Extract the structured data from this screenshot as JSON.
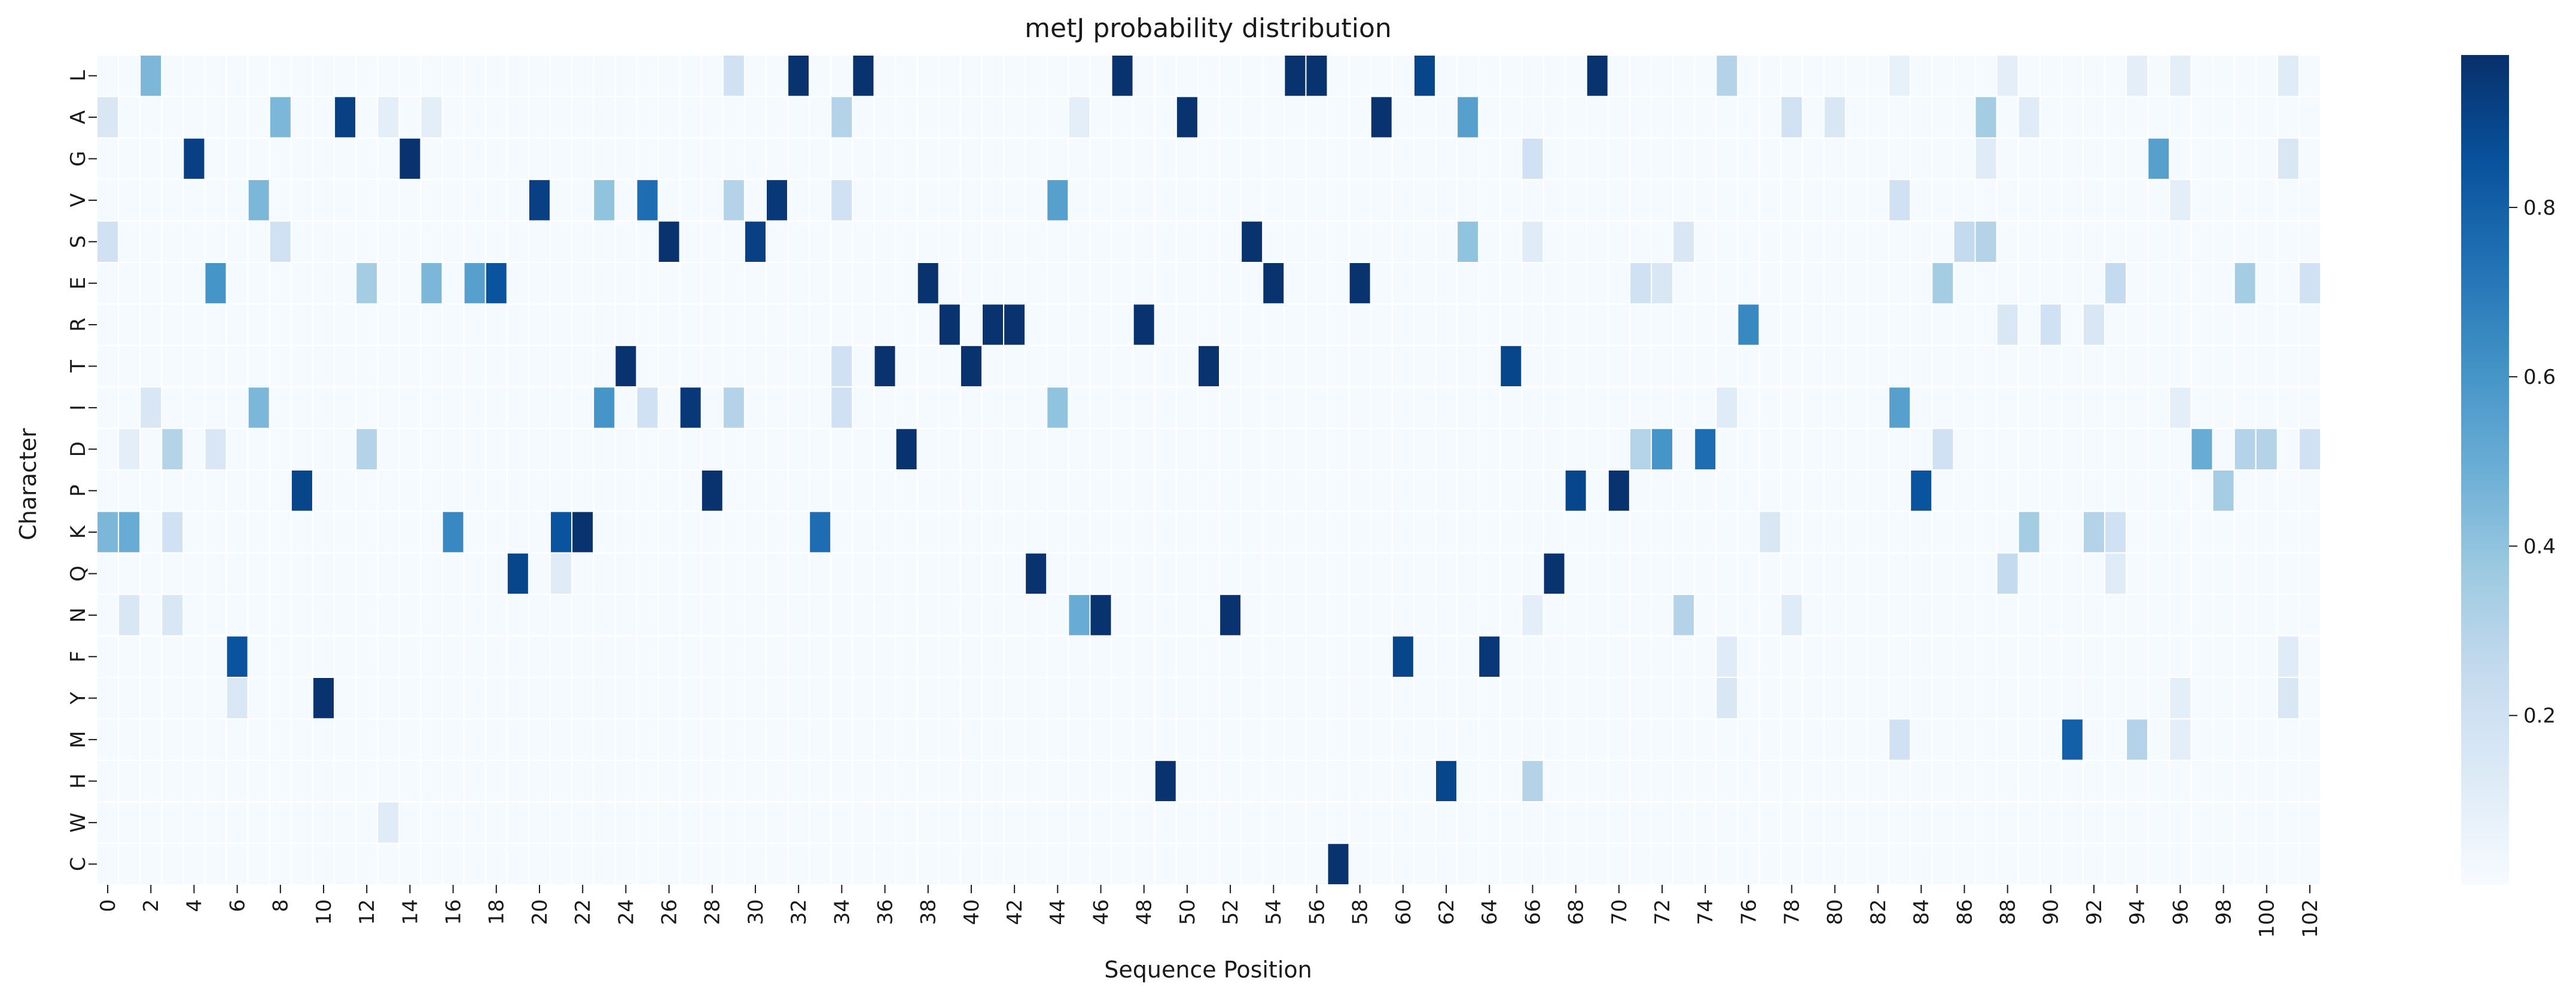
{
  "chart_data": {
    "type": "heatmap",
    "title": "metJ probability distribution",
    "xlabel": "Sequence Position",
    "ylabel": "Character",
    "rows": [
      "L",
      "A",
      "G",
      "V",
      "S",
      "E",
      "R",
      "T",
      "I",
      "D",
      "P",
      "K",
      "Q",
      "N",
      "F",
      "Y",
      "M",
      "H",
      "W",
      "C"
    ],
    "positions": [
      0,
      1,
      2,
      3,
      4,
      5,
      6,
      7,
      8,
      9,
      10,
      11,
      12,
      13,
      14,
      15,
      16,
      17,
      18,
      19,
      20,
      21,
      22,
      23,
      24,
      25,
      26,
      27,
      28,
      29,
      30,
      31,
      32,
      33,
      34,
      35,
      36,
      37,
      38,
      39,
      40,
      41,
      42,
      43,
      44,
      45,
      46,
      47,
      48,
      49,
      50,
      51,
      52,
      53,
      54,
      55,
      56,
      57,
      58,
      59,
      60,
      61,
      62,
      63,
      64,
      65,
      66,
      67,
      68,
      69,
      70,
      71,
      72,
      73,
      74,
      75,
      76,
      77,
      78,
      79,
      80,
      81,
      82,
      83,
      84,
      85,
      86,
      87,
      88,
      89,
      90,
      91,
      92,
      93,
      94,
      95,
      96,
      97,
      98,
      99,
      100,
      101,
      102
    ],
    "x_tick_labels": [
      "0",
      "2",
      "4",
      "6",
      "8",
      "10",
      "12",
      "14",
      "16",
      "18",
      "20",
      "22",
      "24",
      "26",
      "28",
      "30",
      "32",
      "34",
      "36",
      "38",
      "40",
      "42",
      "44",
      "46",
      "48",
      "50",
      "52",
      "54",
      "56",
      "58",
      "60",
      "62",
      "64",
      "66",
      "68",
      "70",
      "72",
      "74",
      "76",
      "78",
      "80",
      "82",
      "84",
      "86",
      "88",
      "90",
      "92",
      "94",
      "96",
      "98",
      "100",
      "102"
    ],
    "colorbar": {
      "vmin": 0,
      "vmax": 0.98,
      "ticks": [
        0.2,
        0.4,
        0.6,
        0.8
      ],
      "tick_labels": [
        "0.2",
        "0.4",
        "0.6",
        "0.8"
      ],
      "colormap": "Blues"
    },
    "background_value": 0.01,
    "grid": false,
    "legend": "colorbar-right",
    "cells": [
      {
        "row": "L",
        "pos": 2,
        "value": 0.45
      },
      {
        "row": "L",
        "pos": 29,
        "value": 0.2
      },
      {
        "row": "L",
        "pos": 32,
        "value": 0.97
      },
      {
        "row": "L",
        "pos": 35,
        "value": 0.97
      },
      {
        "row": "L",
        "pos": 47,
        "value": 0.97
      },
      {
        "row": "L",
        "pos": 55,
        "value": 0.97
      },
      {
        "row": "L",
        "pos": 56,
        "value": 0.97
      },
      {
        "row": "L",
        "pos": 61,
        "value": 0.9
      },
      {
        "row": "L",
        "pos": 69,
        "value": 0.97
      },
      {
        "row": "L",
        "pos": 75,
        "value": 0.3
      },
      {
        "row": "L",
        "pos": 83,
        "value": 0.08
      },
      {
        "row": "L",
        "pos": 88,
        "value": 0.1
      },
      {
        "row": "L",
        "pos": 94,
        "value": 0.1
      },
      {
        "row": "L",
        "pos": 96,
        "value": 0.1
      },
      {
        "row": "L",
        "pos": 101,
        "value": 0.12
      },
      {
        "row": "A",
        "pos": 0,
        "value": 0.15
      },
      {
        "row": "A",
        "pos": 8,
        "value": 0.45
      },
      {
        "row": "A",
        "pos": 11,
        "value": 0.92
      },
      {
        "row": "A",
        "pos": 13,
        "value": 0.1
      },
      {
        "row": "A",
        "pos": 15,
        "value": 0.1
      },
      {
        "row": "A",
        "pos": 34,
        "value": 0.3
      },
      {
        "row": "A",
        "pos": 45,
        "value": 0.1
      },
      {
        "row": "A",
        "pos": 50,
        "value": 0.97
      },
      {
        "row": "A",
        "pos": 59,
        "value": 0.97
      },
      {
        "row": "A",
        "pos": 63,
        "value": 0.55
      },
      {
        "row": "A",
        "pos": 78,
        "value": 0.2
      },
      {
        "row": "A",
        "pos": 80,
        "value": 0.15
      },
      {
        "row": "A",
        "pos": 87,
        "value": 0.35
      },
      {
        "row": "A",
        "pos": 89,
        "value": 0.12
      },
      {
        "row": "G",
        "pos": 4,
        "value": 0.92
      },
      {
        "row": "G",
        "pos": 14,
        "value": 0.97
      },
      {
        "row": "G",
        "pos": 66,
        "value": 0.2
      },
      {
        "row": "G",
        "pos": 87,
        "value": 0.12
      },
      {
        "row": "G",
        "pos": 95,
        "value": 0.55
      },
      {
        "row": "G",
        "pos": 101,
        "value": 0.15
      },
      {
        "row": "V",
        "pos": 7,
        "value": 0.45
      },
      {
        "row": "V",
        "pos": 20,
        "value": 0.92
      },
      {
        "row": "V",
        "pos": 23,
        "value": 0.4
      },
      {
        "row": "V",
        "pos": 25,
        "value": 0.75
      },
      {
        "row": "V",
        "pos": 29,
        "value": 0.3
      },
      {
        "row": "V",
        "pos": 31,
        "value": 0.95
      },
      {
        "row": "V",
        "pos": 34,
        "value": 0.2
      },
      {
        "row": "V",
        "pos": 44,
        "value": 0.55
      },
      {
        "row": "V",
        "pos": 83,
        "value": 0.2
      },
      {
        "row": "V",
        "pos": 96,
        "value": 0.1
      },
      {
        "row": "S",
        "pos": 0,
        "value": 0.2
      },
      {
        "row": "S",
        "pos": 8,
        "value": 0.2
      },
      {
        "row": "S",
        "pos": 26,
        "value": 0.97
      },
      {
        "row": "S",
        "pos": 30,
        "value": 0.92
      },
      {
        "row": "S",
        "pos": 53,
        "value": 0.97
      },
      {
        "row": "S",
        "pos": 63,
        "value": 0.4
      },
      {
        "row": "S",
        "pos": 66,
        "value": 0.12
      },
      {
        "row": "S",
        "pos": 73,
        "value": 0.15
      },
      {
        "row": "S",
        "pos": 86,
        "value": 0.25
      },
      {
        "row": "S",
        "pos": 87,
        "value": 0.3
      },
      {
        "row": "E",
        "pos": 5,
        "value": 0.6
      },
      {
        "row": "E",
        "pos": 12,
        "value": 0.35
      },
      {
        "row": "E",
        "pos": 15,
        "value": 0.45
      },
      {
        "row": "E",
        "pos": 17,
        "value": 0.55
      },
      {
        "row": "E",
        "pos": 18,
        "value": 0.85
      },
      {
        "row": "E",
        "pos": 38,
        "value": 0.97
      },
      {
        "row": "E",
        "pos": 54,
        "value": 0.97
      },
      {
        "row": "E",
        "pos": 58,
        "value": 0.97
      },
      {
        "row": "E",
        "pos": 71,
        "value": 0.2
      },
      {
        "row": "E",
        "pos": 72,
        "value": 0.15
      },
      {
        "row": "E",
        "pos": 85,
        "value": 0.35
      },
      {
        "row": "E",
        "pos": 93,
        "value": 0.25
      },
      {
        "row": "E",
        "pos": 99,
        "value": 0.35
      },
      {
        "row": "E",
        "pos": 102,
        "value": 0.2
      },
      {
        "row": "R",
        "pos": 39,
        "value": 0.97
      },
      {
        "row": "R",
        "pos": 41,
        "value": 0.97
      },
      {
        "row": "R",
        "pos": 42,
        "value": 0.97
      },
      {
        "row": "R",
        "pos": 48,
        "value": 0.97
      },
      {
        "row": "R",
        "pos": 76,
        "value": 0.65
      },
      {
        "row": "R",
        "pos": 88,
        "value": 0.15
      },
      {
        "row": "R",
        "pos": 90,
        "value": 0.2
      },
      {
        "row": "R",
        "pos": 92,
        "value": 0.15
      },
      {
        "row": "T",
        "pos": 24,
        "value": 0.97
      },
      {
        "row": "T",
        "pos": 34,
        "value": 0.2
      },
      {
        "row": "T",
        "pos": 36,
        "value": 0.97
      },
      {
        "row": "T",
        "pos": 40,
        "value": 0.97
      },
      {
        "row": "T",
        "pos": 51,
        "value": 0.97
      },
      {
        "row": "T",
        "pos": 65,
        "value": 0.9
      },
      {
        "row": "I",
        "pos": 2,
        "value": 0.15
      },
      {
        "row": "I",
        "pos": 7,
        "value": 0.45
      },
      {
        "row": "I",
        "pos": 23,
        "value": 0.6
      },
      {
        "row": "I",
        "pos": 25,
        "value": 0.2
      },
      {
        "row": "I",
        "pos": 27,
        "value": 0.95
      },
      {
        "row": "I",
        "pos": 29,
        "value": 0.3
      },
      {
        "row": "I",
        "pos": 34,
        "value": 0.2
      },
      {
        "row": "I",
        "pos": 44,
        "value": 0.4
      },
      {
        "row": "I",
        "pos": 75,
        "value": 0.12
      },
      {
        "row": "I",
        "pos": 83,
        "value": 0.55
      },
      {
        "row": "I",
        "pos": 96,
        "value": 0.1
      },
      {
        "row": "D",
        "pos": 1,
        "value": 0.1
      },
      {
        "row": "D",
        "pos": 3,
        "value": 0.3
      },
      {
        "row": "D",
        "pos": 5,
        "value": 0.15
      },
      {
        "row": "D",
        "pos": 12,
        "value": 0.3
      },
      {
        "row": "D",
        "pos": 37,
        "value": 0.97
      },
      {
        "row": "D",
        "pos": 71,
        "value": 0.3
      },
      {
        "row": "D",
        "pos": 72,
        "value": 0.6
      },
      {
        "row": "D",
        "pos": 74,
        "value": 0.75
      },
      {
        "row": "D",
        "pos": 85,
        "value": 0.2
      },
      {
        "row": "D",
        "pos": 97,
        "value": 0.5
      },
      {
        "row": "D",
        "pos": 99,
        "value": 0.3
      },
      {
        "row": "D",
        "pos": 100,
        "value": 0.3
      },
      {
        "row": "D",
        "pos": 102,
        "value": 0.2
      },
      {
        "row": "P",
        "pos": 9,
        "value": 0.9
      },
      {
        "row": "P",
        "pos": 28,
        "value": 0.97
      },
      {
        "row": "P",
        "pos": 68,
        "value": 0.9
      },
      {
        "row": "P",
        "pos": 70,
        "value": 0.97
      },
      {
        "row": "P",
        "pos": 84,
        "value": 0.85
      },
      {
        "row": "P",
        "pos": 98,
        "value": 0.35
      },
      {
        "row": "K",
        "pos": 0,
        "value": 0.45
      },
      {
        "row": "K",
        "pos": 1,
        "value": 0.5
      },
      {
        "row": "K",
        "pos": 3,
        "value": 0.2
      },
      {
        "row": "K",
        "pos": 16,
        "value": 0.65
      },
      {
        "row": "K",
        "pos": 21,
        "value": 0.85
      },
      {
        "row": "K",
        "pos": 22,
        "value": 0.97
      },
      {
        "row": "K",
        "pos": 33,
        "value": 0.75
      },
      {
        "row": "K",
        "pos": 77,
        "value": 0.15
      },
      {
        "row": "K",
        "pos": 89,
        "value": 0.35
      },
      {
        "row": "K",
        "pos": 92,
        "value": 0.3
      },
      {
        "row": "K",
        "pos": 93,
        "value": 0.2
      },
      {
        "row": "Q",
        "pos": 19,
        "value": 0.9
      },
      {
        "row": "Q",
        "pos": 21,
        "value": 0.12
      },
      {
        "row": "Q",
        "pos": 43,
        "value": 0.97
      },
      {
        "row": "Q",
        "pos": 67,
        "value": 0.97
      },
      {
        "row": "Q",
        "pos": 88,
        "value": 0.25
      },
      {
        "row": "Q",
        "pos": 93,
        "value": 0.12
      },
      {
        "row": "N",
        "pos": 1,
        "value": 0.15
      },
      {
        "row": "N",
        "pos": 3,
        "value": 0.15
      },
      {
        "row": "N",
        "pos": 45,
        "value": 0.5
      },
      {
        "row": "N",
        "pos": 46,
        "value": 0.97
      },
      {
        "row": "N",
        "pos": 52,
        "value": 0.97
      },
      {
        "row": "N",
        "pos": 66,
        "value": 0.1
      },
      {
        "row": "N",
        "pos": 73,
        "value": 0.3
      },
      {
        "row": "N",
        "pos": 78,
        "value": 0.12
      },
      {
        "row": "F",
        "pos": 6,
        "value": 0.85
      },
      {
        "row": "F",
        "pos": 60,
        "value": 0.9
      },
      {
        "row": "F",
        "pos": 64,
        "value": 0.95
      },
      {
        "row": "F",
        "pos": 75,
        "value": 0.12
      },
      {
        "row": "F",
        "pos": 101,
        "value": 0.12
      },
      {
        "row": "Y",
        "pos": 6,
        "value": 0.15
      },
      {
        "row": "Y",
        "pos": 10,
        "value": 0.97
      },
      {
        "row": "Y",
        "pos": 75,
        "value": 0.15
      },
      {
        "row": "Y",
        "pos": 96,
        "value": 0.1
      },
      {
        "row": "Y",
        "pos": 101,
        "value": 0.15
      },
      {
        "row": "M",
        "pos": 83,
        "value": 0.2
      },
      {
        "row": "M",
        "pos": 91,
        "value": 0.8
      },
      {
        "row": "M",
        "pos": 94,
        "value": 0.3
      },
      {
        "row": "M",
        "pos": 96,
        "value": 0.1
      },
      {
        "row": "H",
        "pos": 49,
        "value": 0.97
      },
      {
        "row": "H",
        "pos": 62,
        "value": 0.9
      },
      {
        "row": "H",
        "pos": 66,
        "value": 0.3
      },
      {
        "row": "W",
        "pos": 13,
        "value": 0.12
      },
      {
        "row": "C",
        "pos": 57,
        "value": 0.97
      }
    ]
  }
}
